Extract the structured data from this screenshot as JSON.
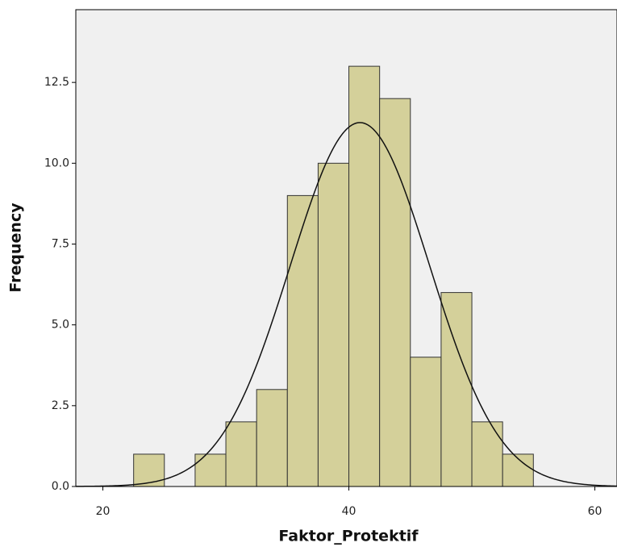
{
  "chart_data": {
    "type": "histogram",
    "x_label": "Faktor_Protektif",
    "y_label": "Frequency",
    "bins": [
      22.5,
      25,
      27.5,
      30,
      32.5,
      35,
      37.5,
      40,
      42.5,
      45,
      47.5,
      50,
      52.5,
      55
    ],
    "values": [
      1,
      0,
      1,
      2,
      3,
      9,
      10,
      13,
      12,
      4,
      6,
      2,
      1
    ],
    "color": "#d4d09a",
    "normal_curve": {
      "mean": 40.9,
      "sd": 5.67
    },
    "xlim": [
      17.8,
      61.8
    ],
    "xticks": [
      20,
      40,
      60
    ],
    "ylim": [
      0,
      14.75
    ],
    "yticks": [
      {
        "value": 0,
        "label": "0.0"
      },
      2.5,
      {
        "value": 5,
        "label": "5.0"
      },
      7.5,
      {
        "value": 10,
        "label": "10.0"
      },
      12.5
    ]
  }
}
